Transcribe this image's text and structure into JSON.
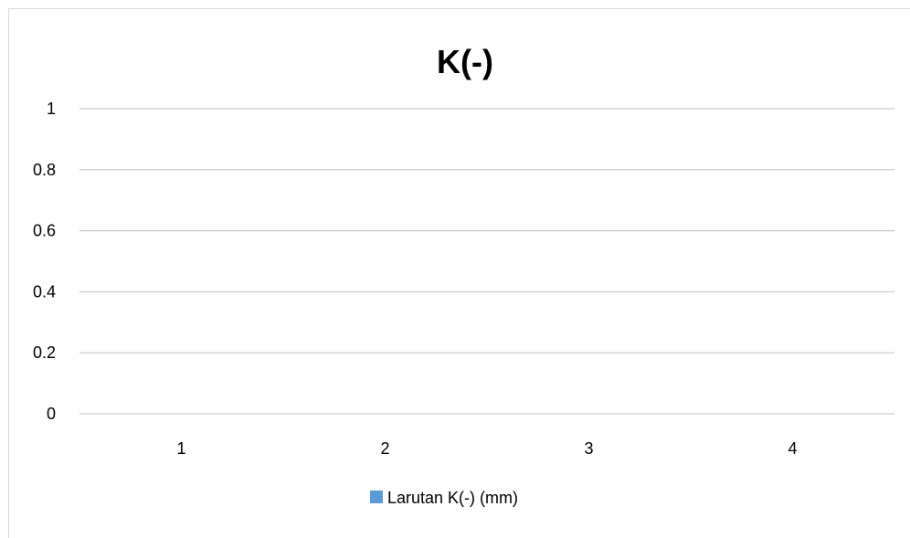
{
  "chart_data": {
    "type": "bar",
    "title": "K(-)",
    "categories": [
      "1",
      "2",
      "3",
      "4"
    ],
    "series": [
      {
        "name": "Larutan K(-) (mm)",
        "values": [
          0,
          0,
          0,
          0
        ],
        "color": "#5b9bd5"
      }
    ],
    "y_ticks": [
      "0",
      "0.2",
      "0.4",
      "0.6",
      "0.8",
      "1"
    ],
    "ylim": [
      0,
      1
    ],
    "xlabel": "",
    "ylabel": "",
    "grid": true,
    "legend_position": "bottom",
    "colors": {
      "gridline": "#bfbfbf",
      "frame": "#d9d9d9",
      "series_1": "#5b9bd5"
    }
  }
}
